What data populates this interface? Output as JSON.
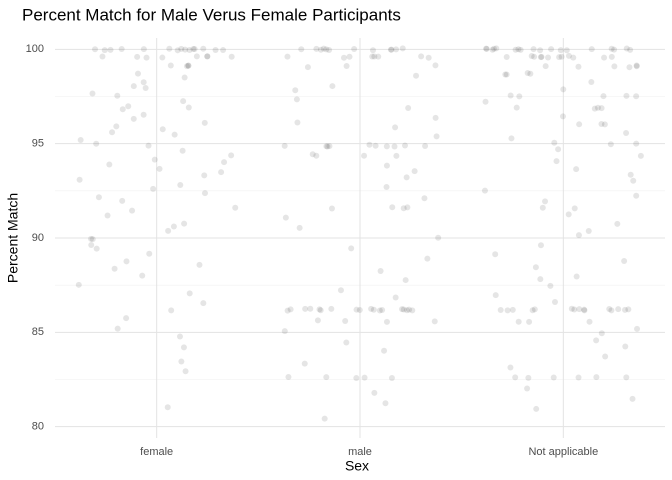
{
  "chart_data": {
    "type": "strip",
    "title": "Percent Match for Male Verus Female Participants",
    "x_label": "Sex",
    "y_label": "Percent Match",
    "categories": [
      "female",
      "male",
      "Not applicable"
    ],
    "color": "#000000",
    "ylim": [
      79.4,
      100.6
    ],
    "yticks": [
      80,
      85,
      90,
      95,
      100
    ],
    "minor_yticks": [
      82.5,
      87.5,
      92.5,
      97.5
    ],
    "grid": true,
    "values": [
      [
        100,
        100,
        100,
        100,
        100,
        100,
        100,
        100,
        100,
        100,
        100,
        100,
        100,
        100,
        100,
        99.6,
        99.6,
        99.6,
        99.6,
        99.6,
        99.6,
        99.6,
        99.6,
        99.1,
        99.1,
        99.1,
        99.1,
        98.7,
        98.3,
        97.9,
        97.5,
        97.2,
        96.8,
        96.5,
        96.1,
        95.8,
        95.5,
        95.2,
        94.9,
        94.6,
        94.2,
        93.9,
        93.5,
        93.1,
        92.8,
        92.4,
        92.0,
        91.6,
        91.2,
        90.8,
        90.4,
        90.0,
        89.6,
        89.2,
        88.8,
        88.4,
        88.0,
        87.5,
        87.1,
        86.6,
        86.2,
        85.7,
        85.2,
        84.8,
        84.2,
        83.5,
        82.9,
        81.0,
        98.5,
        97.0,
        96.3,
        95.9,
        95.0,
        94.4,
        93.7,
        93.3,
        92.6,
        92.2,
        91.4,
        90.6,
        89.9,
        89.4,
        88.6,
        96.9,
        95.6,
        94.0,
        97.7,
        98.1
      ],
      [
        100,
        100,
        100,
        100,
        100,
        100,
        100,
        100,
        100,
        100,
        100,
        100,
        99.6,
        99.6,
        99.6,
        99.6,
        99.6,
        99.6,
        99.6,
        99.6,
        99.1,
        99.1,
        99.1,
        94.9,
        94.9,
        94.9,
        94.9,
        94.9,
        94.9,
        94.9,
        94.9,
        94.9,
        94.9,
        94.4,
        94.4,
        94.4,
        94.4,
        91.6,
        91.6,
        91.6,
        91.6,
        86.2,
        86.2,
        86.2,
        86.2,
        86.2,
        86.2,
        86.2,
        86.2,
        86.2,
        86.2,
        86.2,
        86.2,
        86.2,
        86.2,
        86.2,
        86.2,
        86.2,
        86.2,
        85.6,
        85.6,
        85.6,
        85.6,
        82.6,
        82.6,
        82.6,
        82.6,
        82.6,
        98.6,
        98.0,
        97.4,
        96.9,
        96.4,
        95.9,
        95.4,
        93.8,
        93.2,
        92.7,
        92.1,
        91.1,
        90.5,
        90.0,
        89.4,
        88.9,
        88.3,
        87.8,
        87.2,
        86.8,
        85.1,
        84.5,
        84.0,
        83.3,
        81.8,
        81.2,
        80.4,
        97.8,
        96.1,
        93.5
      ],
      [
        100,
        100,
        100,
        100,
        100,
        100,
        100,
        100,
        100,
        100,
        100,
        100,
        100,
        100,
        100,
        100,
        100,
        100,
        99.6,
        99.6,
        99.6,
        99.6,
        99.6,
        99.6,
        99.6,
        99.6,
        99.6,
        99.6,
        99.6,
        99.6,
        99.1,
        99.1,
        99.1,
        99.1,
        99.1,
        99.1,
        98.7,
        98.7,
        98.7,
        98.7,
        97.5,
        97.5,
        97.5,
        97.5,
        97.5,
        96.9,
        96.9,
        96.9,
        96.9,
        96.0,
        96.0,
        96.0,
        95.0,
        95.0,
        95.0,
        94.1,
        93.6,
        93.0,
        92.5,
        91.9,
        91.6,
        91.6,
        91.2,
        90.7,
        90.1,
        89.6,
        89.1,
        88.5,
        88.0,
        87.5,
        87.0,
        86.6,
        86.2,
        86.2,
        86.2,
        86.2,
        86.2,
        86.2,
        86.2,
        86.2,
        86.2,
        86.2,
        86.2,
        86.2,
        86.2,
        86.2,
        86.2,
        85.6,
        85.6,
        85.6,
        84.9,
        84.3,
        83.7,
        83.1,
        82.6,
        82.6,
        82.6,
        82.6,
        82.6,
        82.6,
        82.0,
        81.5,
        80.9,
        98.3,
        97.9,
        97.2,
        96.5,
        95.6,
        95.3,
        94.7,
        94.4,
        93.3,
        92.2,
        90.4,
        88.8,
        87.8,
        85.2,
        84.6
      ]
    ]
  }
}
